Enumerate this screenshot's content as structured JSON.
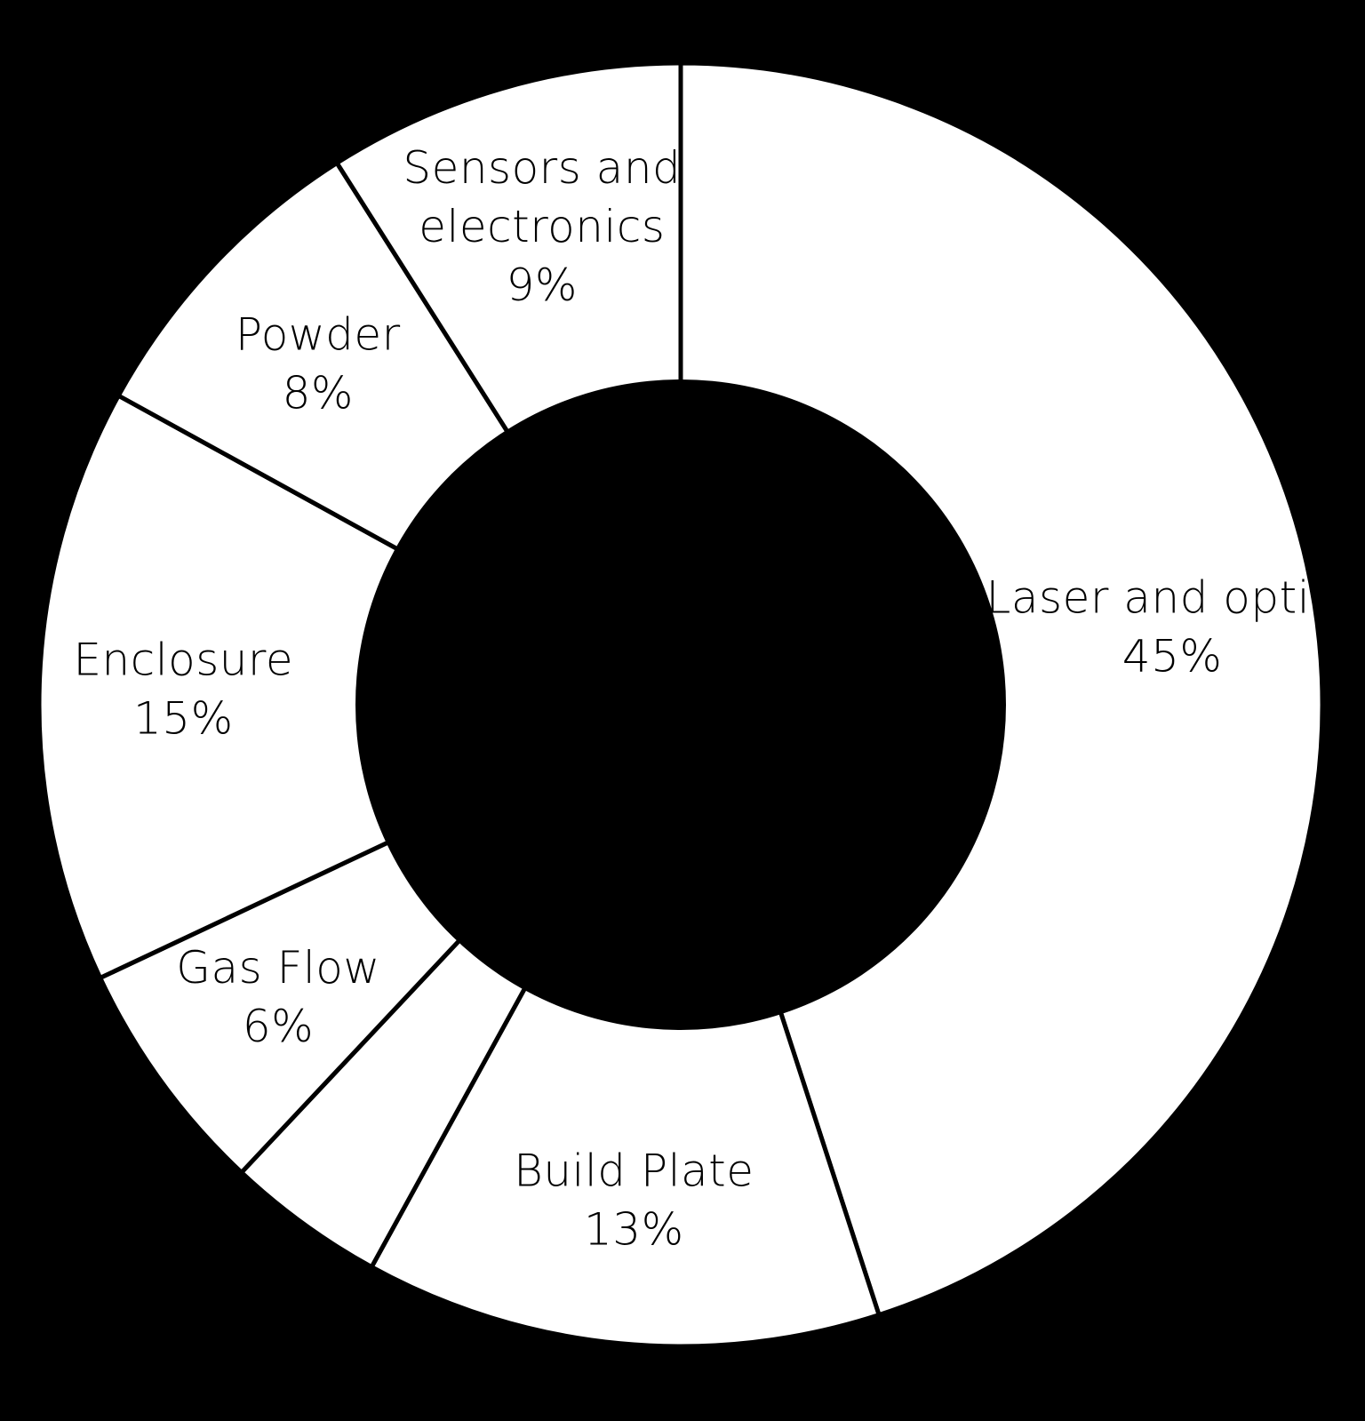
{
  "colors": {
    "background": "#000000",
    "slice_fill": "#ffffff",
    "slice_border": "#000000",
    "label_text": "#000000"
  },
  "chart_data": {
    "type": "pie",
    "variant": "donut",
    "title": "",
    "legend": "none",
    "slices": [
      {
        "label_lines": [
          "Laser and optics"
        ],
        "value": 45,
        "value_label": "45%"
      },
      {
        "label_lines": [
          "Build Plate"
        ],
        "value": 13,
        "value_label": "13%"
      },
      {
        "label_lines": [],
        "value": 4,
        "value_label": ""
      },
      {
        "label_lines": [
          "Gas Flow"
        ],
        "value": 6,
        "value_label": "6%"
      },
      {
        "label_lines": [
          "Enclosure"
        ],
        "value": 15,
        "value_label": "15%"
      },
      {
        "label_lines": [
          "Powder"
        ],
        "value": 8,
        "value_label": "8%"
      },
      {
        "label_lines": [
          "Sensors and",
          "electronics"
        ],
        "value": 9,
        "value_label": "9%"
      }
    ]
  }
}
